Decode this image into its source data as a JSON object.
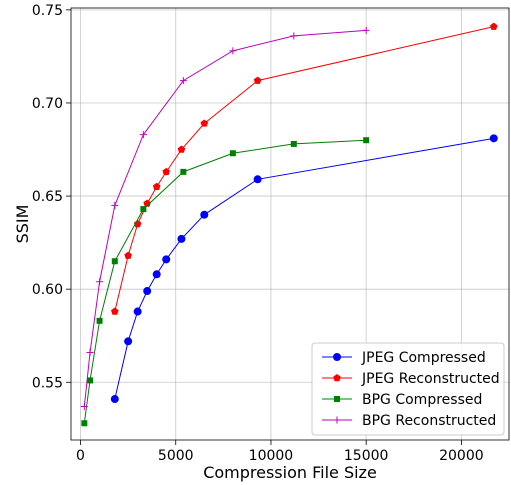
{
  "chart_data": {
    "type": "line",
    "xlabel": "Compression File Size",
    "ylabel": "SSIM",
    "xlim": [
      -500,
      22500
    ],
    "ylim": [
      0.519,
      0.751
    ],
    "xticks": [
      0,
      5000,
      10000,
      15000,
      20000
    ],
    "xtick_labels": [
      "0",
      "5000",
      "10000",
      "15000",
      "20000"
    ],
    "yticks": [
      0.55,
      0.6,
      0.65,
      0.7,
      0.75
    ],
    "ytick_labels": [
      "0.55",
      "0.60",
      "0.65",
      "0.70",
      "0.75"
    ],
    "grid": true,
    "legend_position": "lower-right",
    "series": [
      {
        "name": "JPEG Compressed",
        "color": "#0000ff",
        "marker": "circle",
        "x": [
          1800,
          2500,
          3000,
          3500,
          4000,
          4500,
          5300,
          6500,
          9300,
          21700
        ],
        "y": [
          0.541,
          0.572,
          0.588,
          0.599,
          0.608,
          0.616,
          0.627,
          0.64,
          0.659,
          0.681
        ]
      },
      {
        "name": "JPEG Reconstructed",
        "color": "#ff0000",
        "marker": "pentagon",
        "x": [
          1800,
          2500,
          3000,
          3500,
          4000,
          4500,
          5300,
          6500,
          9300,
          21700
        ],
        "y": [
          0.588,
          0.618,
          0.635,
          0.646,
          0.655,
          0.663,
          0.675,
          0.689,
          0.712,
          0.741
        ]
      },
      {
        "name": "BPG Compressed",
        "color": "#008000",
        "marker": "square",
        "x": [
          200,
          500,
          1000,
          1800,
          3300,
          5400,
          8000,
          11200,
          15000
        ],
        "y": [
          0.528,
          0.551,
          0.583,
          0.615,
          0.643,
          0.663,
          0.673,
          0.678,
          0.68
        ]
      },
      {
        "name": "BPG Reconstructed",
        "color": "#bf00bf",
        "marker": "plus",
        "x": [
          200,
          500,
          1000,
          1800,
          3300,
          5400,
          8000,
          11200,
          15000
        ],
        "y": [
          0.537,
          0.566,
          0.604,
          0.645,
          0.683,
          0.712,
          0.728,
          0.736,
          0.739
        ]
      }
    ]
  }
}
